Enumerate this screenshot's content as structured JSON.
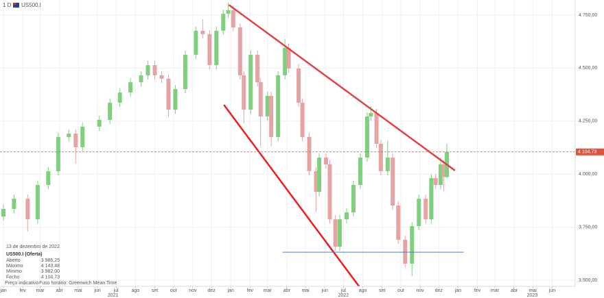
{
  "chart_data": {
    "type": "candlestick",
    "interval": "1 D",
    "symbol": "US500.I",
    "x": [
      0,
      17,
      39,
      55,
      72,
      88,
      105,
      116,
      127,
      154,
      171,
      187,
      204,
      221,
      232,
      243,
      254,
      265,
      276,
      292,
      309,
      320,
      331,
      342,
      353,
      361,
      369,
      380,
      386,
      397,
      408,
      413,
      424,
      430,
      441,
      452,
      458,
      474,
      480,
      491,
      502,
      507,
      518,
      524,
      533,
      540,
      551,
      562,
      573,
      584,
      590,
      599,
      606,
      617,
      625,
      634,
      645,
      656,
      667,
      678,
      687,
      694,
      702,
      707,
      712
    ],
    "open": [
      3800,
      3836,
      3884,
      3787,
      3949,
      4014,
      4175,
      4191,
      4127,
      4224,
      4256,
      4337,
      4385,
      4433,
      4466,
      4514,
      4466,
      4450,
      4304,
      4401,
      4563,
      4676,
      4660,
      4514,
      4676,
      4756,
      4773,
      4692,
      4466,
      4304,
      4563,
      4433,
      4272,
      4369,
      4175,
      4466,
      4595,
      4498,
      4337,
      4175,
      4014,
      3917,
      4078,
      4046,
      3787,
      3658,
      3787,
      3820,
      3949,
      4078,
      4272,
      4288,
      4143,
      4014,
      4078,
      3852,
      3691,
      3578,
      3755,
      3884,
      3787,
      3981,
      3949,
      4046,
      3986.25
    ],
    "high": [
      3856,
      3904,
      3904,
      3969,
      4034,
      4195,
      4211,
      4211,
      4244,
      4276,
      4357,
      4405,
      4453,
      4486,
      4534,
      4534,
      4486,
      4470,
      4421,
      4583,
      4696,
      4730,
      4680,
      4696,
      4776,
      4808,
      4793,
      4712,
      4486,
      4583,
      4583,
      4453,
      4389,
      4389,
      4486,
      4636,
      4615,
      4518,
      4357,
      4195,
      4034,
      4098,
      4098,
      4066,
      3807,
      3807,
      3840,
      3969,
      4098,
      4292,
      4320,
      4308,
      4163,
      4160,
      4098,
      3872,
      3711,
      3775,
      3904,
      3904,
      4001,
      4001,
      4080,
      4066,
      4143.48
    ],
    "low": [
      3780,
      3816,
      3730,
      3767,
      3929,
      3994,
      4155,
      4050,
      4107,
      4204,
      4236,
      4317,
      4365,
      4413,
      4446,
      4446,
      4430,
      4270,
      4284,
      4381,
      4543,
      4640,
      4494,
      4494,
      4656,
      4736,
      4672,
      4446,
      4240,
      4284,
      4413,
      4130,
      4252,
      4130,
      4155,
      4446,
      4478,
      4317,
      4155,
      3994,
      3820,
      3897,
      4026,
      3767,
      3640,
      3638,
      3767,
      3800,
      3929,
      4058,
      4252,
      4123,
      3994,
      3994,
      3832,
      3671,
      3560,
      3520,
      3735,
      3767,
      3767,
      3929,
      3929,
      3920,
      3982
    ],
    "close": [
      3836,
      3884,
      3787,
      3949,
      4014,
      4175,
      4191,
      4127,
      4224,
      4256,
      4337,
      4385,
      4433,
      4466,
      4514,
      4466,
      4450,
      4304,
      4401,
      4563,
      4676,
      4660,
      4514,
      4676,
      4756,
      4773,
      4692,
      4466,
      4304,
      4563,
      4433,
      4272,
      4369,
      4175,
      4466,
      4595,
      4498,
      4337,
      4175,
      4014,
      3917,
      4078,
      4046,
      3787,
      3658,
      3787,
      3820,
      3949,
      4078,
      4272,
      4288,
      4143,
      4014,
      4078,
      3852,
      3691,
      3578,
      3755,
      3884,
      3787,
      3981,
      3949,
      4046,
      3986.25,
      4104.73
    ],
    "up_color": "#7fcf7f",
    "down_color": "#e6a3a3",
    "xlim": [
      -5.5,
      918
    ],
    "ylim": [
      3471,
      4821
    ],
    "yticks": [
      {
        "value": 3500,
        "label": "3.500,00"
      },
      {
        "value": 3750,
        "label": "3.750,00"
      },
      {
        "value": 4000,
        "label": "4.000,00"
      },
      {
        "value": 4250,
        "label": "4.250,00"
      },
      {
        "value": 4500,
        "label": "4.500,00"
      },
      {
        "value": 4750,
        "label": "4.750,00"
      }
    ],
    "xticks": [
      {
        "value": 0,
        "label": "jan"
      },
      {
        "value": 31,
        "label": "fev"
      },
      {
        "value": 59,
        "label": "mar"
      },
      {
        "value": 90,
        "label": "abr"
      },
      {
        "value": 120,
        "label": "mai"
      },
      {
        "value": 151,
        "label": "jun"
      },
      {
        "value": 181,
        "label": "jul"
      },
      {
        "value": 212,
        "label": "ago"
      },
      {
        "value": 243,
        "label": "set"
      },
      {
        "value": 273,
        "label": "out"
      },
      {
        "value": 304,
        "label": "nov"
      },
      {
        "value": 334,
        "label": "dez"
      },
      {
        "value": 365,
        "label": "jan"
      },
      {
        "value": 396,
        "label": "fev"
      },
      {
        "value": 424,
        "label": "mar"
      },
      {
        "value": 455,
        "label": "abr"
      },
      {
        "value": 485,
        "label": "mai"
      },
      {
        "value": 516,
        "label": "jun"
      },
      {
        "value": 546,
        "label": "jul"
      },
      {
        "value": 577,
        "label": "ago"
      },
      {
        "value": 608,
        "label": "set"
      },
      {
        "value": 638,
        "label": "out"
      },
      {
        "value": 669,
        "label": "nov"
      },
      {
        "value": 699,
        "label": "dez"
      },
      {
        "value": 730,
        "label": "jan"
      },
      {
        "value": 761,
        "label": "fev"
      },
      {
        "value": 789,
        "label": "mar"
      },
      {
        "value": 820,
        "label": "abr"
      },
      {
        "value": 850,
        "label": "mai"
      },
      {
        "value": 881,
        "label": "jun"
      }
    ],
    "year_labels": [
      {
        "value": 176,
        "label": "2021"
      },
      {
        "value": 546,
        "label": "2022"
      },
      {
        "value": 849,
        "label": "2023"
      }
    ],
    "grid": true,
    "last_price": {
      "value": 4104.73,
      "label": "4 104,73",
      "color": "#e0533a"
    },
    "drawings": [
      {
        "x": [
          362,
          725
        ],
        "y": [
          4798,
          4017
        ],
        "color": "#e04040"
      },
      {
        "x": [
          354,
          571
        ],
        "y": [
          4327,
          3471
        ],
        "color": "#ee1c1c"
      },
      {
        "x": [
          448,
          739
        ],
        "y": [
          3632,
          3632
        ],
        "color": "#4a7fc1"
      }
    ],
    "info": {
      "date": "13 de dezembro de 2022",
      "name": "US500.I (Oferta)",
      "rows": [
        [
          "Aberto",
          "3 986,25"
        ],
        [
          "Máximo",
          "4 143,48"
        ],
        [
          "Mínimo",
          "3 982,00"
        ],
        [
          "Fecho",
          "4 104,73"
        ]
      ],
      "footer": [
        "Preço indicativo",
        "Fuso horário: Greenwich Mean Time"
      ]
    }
  }
}
